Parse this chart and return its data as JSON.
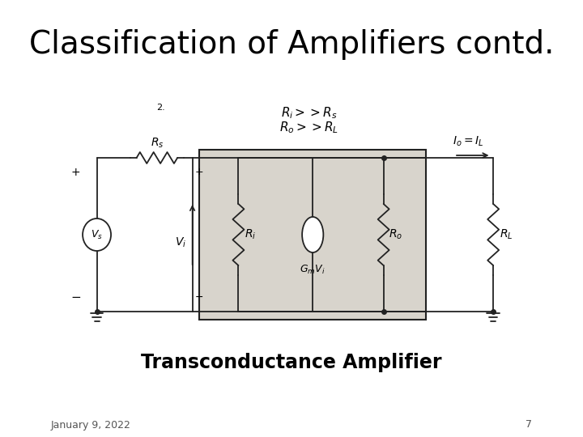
{
  "title": "Classification of Amplifiers contd.",
  "subtitle": "Transconductance Amplifier",
  "date": "January 9, 2022",
  "page": "7",
  "bg_color": "#ffffff",
  "slide_bg": "#f5f4f0",
  "title_fontsize": 28,
  "subtitle_fontsize": 17,
  "date_fontsize": 9,
  "page_fontsize": 9,
  "circuit_bg": "#d8d4cc",
  "circuit_border": "#333333",
  "line_color": "#222222",
  "text_color": "#111111",
  "note_2": "2.",
  "cond1": "$R_i>>R_s$",
  "cond2": "$R_o>>R_L$",
  "io_label": "$I_o=I_L$",
  "vs_label": "$V_s$",
  "vi_label": "$V_i$",
  "ri_label": "$R_i$",
  "ro_label": "$R_o$",
  "rs_label": "$R_s$",
  "rl_label": "$R_L$",
  "gm_label": "$G_m V_i$"
}
